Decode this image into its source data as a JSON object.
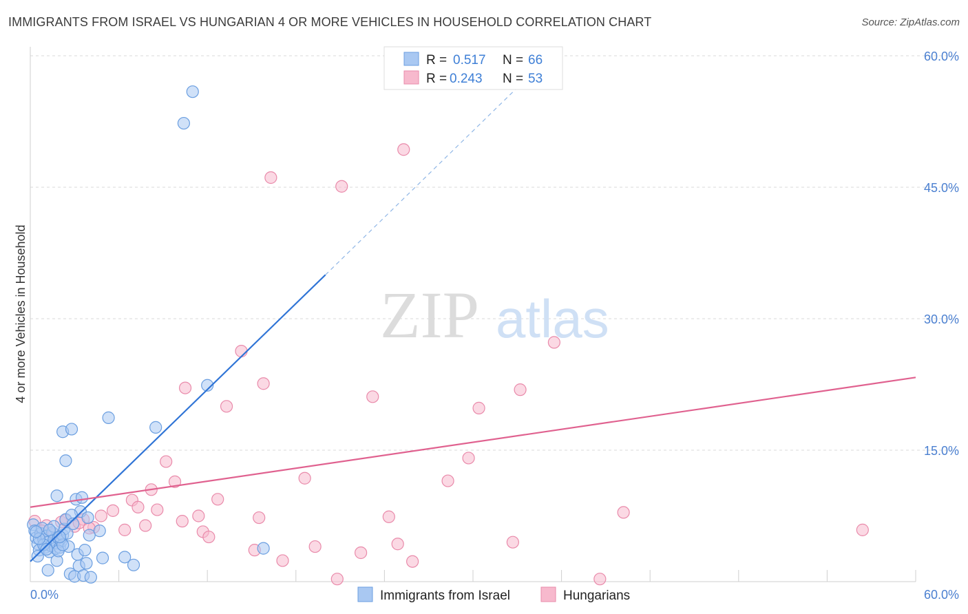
{
  "title": "IMMIGRANTS FROM ISRAEL VS HUNGARIAN 4 OR MORE VEHICLES IN HOUSEHOLD CORRELATION CHART",
  "source": "Source: ZipAtlas.com",
  "watermark": {
    "zip": "ZIP",
    "atlas": "atlas"
  },
  "legend": {
    "rows": [
      {
        "r_label": "R = ",
        "r_value": "0.517",
        "n_label": "N = ",
        "n_value": "66"
      },
      {
        "r_label": "R = ",
        "r_value": "0.243",
        "n_label": "N = ",
        "n_value": "53"
      }
    ]
  },
  "colors": {
    "israel_fill": "#a9c8f2",
    "israel_stroke": "#6a9ee0",
    "israel_line": "#2f74d6",
    "hung_fill": "#f7b9cd",
    "hung_stroke": "#e98aaa",
    "hung_line": "#e0618f",
    "grid": "#d9d9d9",
    "tick_text": "#4a7fd0"
  },
  "chart_data": {
    "type": "scatter",
    "title": "IMMIGRANTS FROM ISRAEL VS HUNGARIAN 4 OR MORE VEHICLES IN HOUSEHOLD CORRELATION CHART",
    "xlabel": "",
    "ylabel": "4 or more Vehicles in Household",
    "xlim": [
      0,
      60
    ],
    "ylim": [
      0,
      60
    ],
    "x_tick_labels": [
      "0.0%",
      "60.0%"
    ],
    "y_ticks": [
      15,
      30,
      45,
      60
    ],
    "y_tick_labels": [
      "15.0%",
      "30.0%",
      "45.0%",
      "60.0%"
    ],
    "grid": true,
    "series": [
      {
        "name": "Immigrants from Israel",
        "R": 0.517,
        "N": 66,
        "trend": {
          "x0": 0,
          "y0": 2.3,
          "x1": 20,
          "y1": 35.0,
          "dash_to_x": 34,
          "dash_to_y": 58
        },
        "points": [
          [
            0.2,
            6.5
          ],
          [
            0.3,
            5.8
          ],
          [
            0.4,
            5.0
          ],
          [
            0.5,
            4.3
          ],
          [
            0.6,
            3.6
          ],
          [
            0.7,
            5.5
          ],
          [
            0.8,
            6.1
          ],
          [
            0.9,
            4.8
          ],
          [
            1.0,
            3.9
          ],
          [
            1.1,
            5.2
          ],
          [
            1.2,
            4.5
          ],
          [
            1.3,
            3.4
          ],
          [
            1.4,
            4.1
          ],
          [
            1.5,
            5.6
          ],
          [
            1.6,
            4.8
          ],
          [
            1.7,
            3.8
          ],
          [
            1.8,
            4.4
          ],
          [
            1.9,
            5.0
          ],
          [
            2.0,
            3.9
          ],
          [
            2.1,
            4.6
          ],
          [
            2.2,
            5.3
          ],
          [
            2.3,
            6.0
          ],
          [
            2.4,
            7.1
          ],
          [
            2.5,
            5.5
          ],
          [
            0.5,
            2.9
          ],
          [
            1.2,
            1.3
          ],
          [
            1.8,
            2.4
          ],
          [
            2.7,
            0.9
          ],
          [
            3.0,
            0.6
          ],
          [
            3.3,
            1.8
          ],
          [
            3.6,
            0.7
          ],
          [
            4.1,
            0.5
          ],
          [
            3.2,
            3.1
          ],
          [
            3.8,
            2.1
          ],
          [
            4.9,
            2.7
          ],
          [
            6.4,
            2.8
          ],
          [
            7.0,
            1.9
          ],
          [
            3.7,
            3.6
          ],
          [
            4.7,
            5.8
          ],
          [
            3.4,
            8.0
          ],
          [
            4.0,
            5.3
          ],
          [
            2.8,
            7.6
          ],
          [
            3.9,
            7.3
          ],
          [
            3.1,
            9.4
          ],
          [
            3.5,
            9.6
          ],
          [
            1.8,
            9.8
          ],
          [
            2.4,
            13.8
          ],
          [
            2.2,
            17.1
          ],
          [
            2.8,
            17.4
          ],
          [
            5.3,
            18.7
          ],
          [
            8.5,
            17.6
          ],
          [
            12.0,
            22.4
          ],
          [
            10.4,
            52.3
          ],
          [
            11.0,
            55.9
          ],
          [
            15.8,
            3.8
          ],
          [
            0.9,
            4.2
          ],
          [
            1.6,
            6.3
          ],
          [
            2.6,
            4.0
          ],
          [
            1.3,
            5.9
          ],
          [
            2.9,
            6.6
          ],
          [
            0.6,
            4.9
          ],
          [
            1.9,
            3.5
          ],
          [
            2.2,
            4.2
          ],
          [
            0.4,
            5.7
          ],
          [
            1.1,
            3.7
          ],
          [
            2.0,
            5.1
          ]
        ]
      },
      {
        "name": "Hungarians",
        "R": 0.243,
        "N": 53,
        "trend": {
          "x0": 0,
          "y0": 8.5,
          "x1": 60,
          "y1": 23.3
        },
        "points": [
          [
            0.3,
            6.9
          ],
          [
            1.1,
            6.4
          ],
          [
            2.1,
            6.8
          ],
          [
            3.0,
            6.3
          ],
          [
            3.6,
            7.1
          ],
          [
            4.3,
            6.2
          ],
          [
            4.8,
            7.5
          ],
          [
            5.6,
            8.1
          ],
          [
            6.4,
            5.9
          ],
          [
            6.9,
            9.3
          ],
          [
            7.3,
            8.5
          ],
          [
            7.8,
            6.4
          ],
          [
            8.2,
            10.5
          ],
          [
            8.6,
            8.2
          ],
          [
            9.2,
            13.7
          ],
          [
            9.8,
            11.4
          ],
          [
            10.3,
            6.9
          ],
          [
            11.4,
            7.5
          ],
          [
            11.7,
            5.7
          ],
          [
            12.1,
            5.1
          ],
          [
            12.7,
            9.4
          ],
          [
            10.5,
            22.1
          ],
          [
            13.3,
            20.0
          ],
          [
            14.3,
            26.3
          ],
          [
            15.2,
            3.6
          ],
          [
            15.5,
            7.3
          ],
          [
            15.8,
            22.6
          ],
          [
            16.3,
            46.1
          ],
          [
            17.1,
            2.4
          ],
          [
            18.6,
            11.8
          ],
          [
            19.3,
            4.0
          ],
          [
            20.8,
            0.3
          ],
          [
            21.1,
            45.1
          ],
          [
            22.4,
            3.3
          ],
          [
            23.2,
            21.1
          ],
          [
            24.3,
            7.4
          ],
          [
            24.9,
            4.3
          ],
          [
            25.3,
            49.3
          ],
          [
            25.9,
            2.3
          ],
          [
            28.3,
            11.5
          ],
          [
            29.7,
            14.1
          ],
          [
            30.4,
            19.8
          ],
          [
            32.7,
            4.5
          ],
          [
            33.2,
            21.9
          ],
          [
            35.5,
            27.3
          ],
          [
            38.6,
            0.3
          ],
          [
            40.2,
            7.9
          ],
          [
            56.4,
            5.9
          ],
          [
            2.4,
            7.0
          ],
          [
            1.6,
            5.4
          ],
          [
            4.0,
            6.1
          ],
          [
            0.8,
            5.8
          ],
          [
            3.3,
            6.7
          ]
        ]
      }
    ]
  },
  "bottom_legend": {
    "israel_label": "Immigrants from Israel",
    "hung_label": "Hungarians"
  }
}
